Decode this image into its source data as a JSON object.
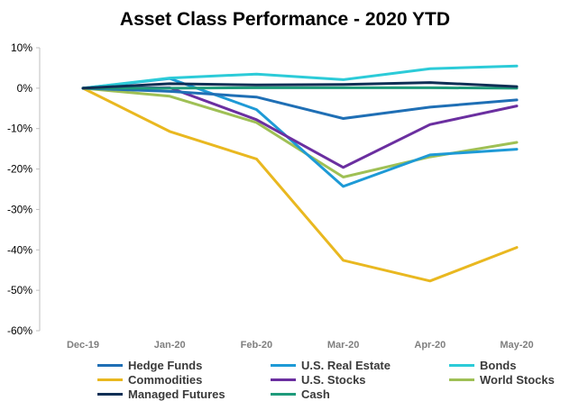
{
  "chart_data": {
    "type": "line",
    "title": "Asset Class Performance - 2020 YTD",
    "xlabel": "",
    "ylabel": "",
    "categories": [
      "Dec-19",
      "Jan-20",
      "Feb-20",
      "Mar-20",
      "Apr-20",
      "May-20"
    ],
    "ylim": [
      -60,
      10
    ],
    "yticks": [
      10,
      0,
      -10,
      -20,
      -30,
      -40,
      -50,
      -60
    ],
    "ytick_labels": [
      "10%",
      "0%",
      "-10%",
      "-20%",
      "-30%",
      "-40%",
      "-50%",
      "-60%"
    ],
    "grid": false,
    "legend_position": "bottom",
    "series": [
      {
        "name": "Hedge Funds",
        "color": "#1f6fb5",
        "values": [
          0,
          -0.8,
          -2.2,
          -7.5,
          -4.7,
          -2.9
        ]
      },
      {
        "name": "U.S. Real Estate",
        "color": "#1e9ad6",
        "values": [
          0,
          2.4,
          -5.3,
          -24.3,
          -16.5,
          -15.1
        ]
      },
      {
        "name": "Bonds",
        "color": "#2ccbd8",
        "values": [
          0,
          2.5,
          3.5,
          2.1,
          4.8,
          5.5
        ]
      },
      {
        "name": "Commodities",
        "color": "#e9b820",
        "values": [
          0,
          -10.7,
          -17.5,
          -42.6,
          -47.7,
          -39.4
        ]
      },
      {
        "name": "U.S. Stocks",
        "color": "#6b2fa0",
        "values": [
          0,
          0.1,
          -7.8,
          -19.6,
          -9.0,
          -4.4
        ]
      },
      {
        "name": "World Stocks",
        "color": "#9fc055",
        "values": [
          0,
          -2.0,
          -8.5,
          -22.0,
          -17.0,
          -13.4
        ]
      },
      {
        "name": "Managed Futures",
        "color": "#0f2f55",
        "values": [
          0,
          1.1,
          0.8,
          0.9,
          1.4,
          0.4
        ]
      },
      {
        "name": "Cash",
        "color": "#1f9b7b",
        "values": [
          0,
          0.0,
          0.1,
          0.1,
          0.1,
          0.0
        ]
      }
    ]
  }
}
